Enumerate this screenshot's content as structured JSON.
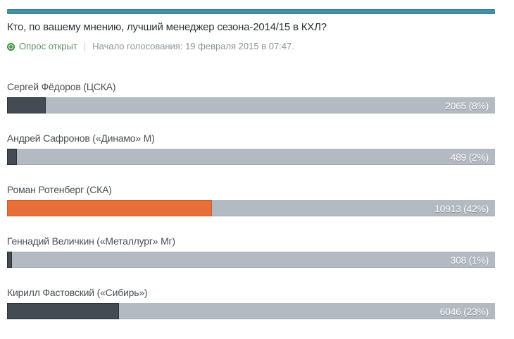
{
  "header": {
    "accent_bar_color": "#3f8ca6",
    "title": "Кто, по вашему мнению, лучший менеджер сезона-2014/15 в КХЛ?"
  },
  "status": {
    "open_label": "Опрос открыт",
    "separator": "|",
    "start_label": "Начало голосования: 19 февраля 2015 в 07:47.",
    "open_text_color": "#5e9164",
    "dot_color": "#4aa34e"
  },
  "poll": {
    "track_color": "#b4bac1",
    "fill_color": "#454b52",
    "highlight_color": "#e7703a",
    "options": [
      {
        "label": "Сергей Фёдоров (ЦСКА)",
        "votes": 2065,
        "percent": 8,
        "value_label": "2065 (8%)",
        "highlight": false
      },
      {
        "label": "Андрей Сафронов («Динамо» М)",
        "votes": 489,
        "percent": 2,
        "value_label": "489 (2%)",
        "highlight": false
      },
      {
        "label": "Роман Ротенберг (СКА)",
        "votes": 10913,
        "percent": 42,
        "value_label": "10913 (42%)",
        "highlight": true
      },
      {
        "label": "Геннадий Величкин («Металлург» Мг)",
        "votes": 308,
        "percent": 1,
        "value_label": "308 (1%)",
        "highlight": false
      },
      {
        "label": "Кирилл Фастовский («Сибирь»)",
        "votes": 6046,
        "percent": 23,
        "value_label": "6046 (23%)",
        "highlight": false
      }
    ]
  }
}
